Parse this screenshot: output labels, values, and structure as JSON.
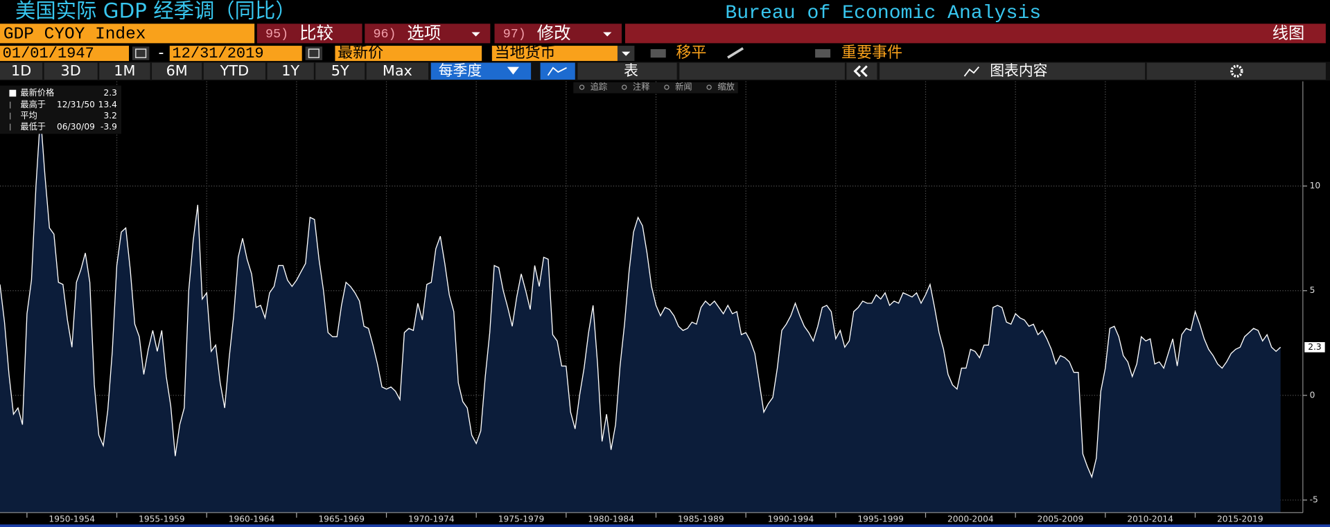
{
  "header": {
    "title": "美国实际 GDP 经季调（同比）",
    "source": "Bureau of Economic Analysis"
  },
  "command_bar": {
    "ticker": "GDP CYOY Index",
    "actions": [
      {
        "key": "95)",
        "label": "比较"
      },
      {
        "key": "96)",
        "label": "选项"
      },
      {
        "key": "97)",
        "label": "修改"
      }
    ],
    "view": "线图"
  },
  "settings_bar": {
    "start_date": "01/01/1947",
    "separator": "-",
    "end_date": "12/31/2019",
    "price_field": "最新价",
    "currency": "当地货币",
    "smoothing": "移平",
    "events": "重要事件"
  },
  "range_bar": {
    "ranges": [
      "1D",
      "3D",
      "1M",
      "6M",
      "YTD",
      "1Y",
      "5Y",
      "Max"
    ],
    "frequency": "每季度",
    "table": "表",
    "chart_contents": "图表内容"
  },
  "chart_tools": [
    "追踪",
    "注释",
    "新闻",
    "缩放"
  ],
  "chart_data": {
    "type": "area",
    "stats": {
      "high_label": "最高于",
      "high_date": "12/31/50",
      "high": 13.4,
      "mean_label": "平均",
      "mean": 3.2,
      "low_label": "最低于",
      "low_date": "06/30/09",
      "low": -3.9
    },
    "x": [
      1948.5,
      1948.75,
      1949,
      1949.25,
      1949.5,
      1949.75,
      1950,
      1950.25,
      1950.5,
      1950.75,
      1951,
      1951.25,
      1951.5,
      1951.75,
      1952,
      1952.25,
      1952.5,
      1952.75,
      1953,
      1953.25,
      1953.5,
      1953.75,
      1954,
      1954.25,
      1954.5,
      1954.75,
      1955,
      1955.25,
      1955.5,
      1955.75,
      1956,
      1956.25,
      1956.5,
      1956.75,
      1957,
      1957.25,
      1957.5,
      1957.75,
      1958,
      1958.25,
      1958.5,
      1958.75,
      1959,
      1959.25,
      1959.5,
      1959.75,
      1960,
      1960.25,
      1960.5,
      1960.75,
      1961,
      1961.25,
      1961.5,
      1961.75,
      1962,
      1962.25,
      1962.5,
      1962.75,
      1963,
      1963.25,
      1963.5,
      1963.75,
      1964,
      1964.25,
      1964.5,
      1964.75,
      1965,
      1965.25,
      1965.5,
      1965.75,
      1966,
      1966.25,
      1966.5,
      1966.75,
      1967,
      1967.25,
      1967.5,
      1967.75,
      1968,
      1968.25,
      1968.5,
      1968.75,
      1969,
      1969.25,
      1969.5,
      1969.75,
      1970,
      1970.25,
      1970.5,
      1970.75,
      1971,
      1971.25,
      1971.5,
      1971.75,
      1972,
      1972.25,
      1972.5,
      1972.75,
      1973,
      1973.25,
      1973.5,
      1973.75,
      1974,
      1974.25,
      1974.5,
      1974.75,
      1975,
      1975.25,
      1975.5,
      1975.75,
      1976,
      1976.25,
      1976.5,
      1976.75,
      1977,
      1977.25,
      1977.5,
      1977.75,
      1978,
      1978.25,
      1978.5,
      1978.75,
      1979,
      1979.25,
      1979.5,
      1979.75,
      1980,
      1980.25,
      1980.5,
      1980.75,
      1981,
      1981.25,
      1981.5,
      1981.75,
      1982,
      1982.25,
      1982.5,
      1982.75,
      1983,
      1983.25,
      1983.5,
      1983.75,
      1984,
      1984.25,
      1984.5,
      1984.75,
      1985,
      1985.25,
      1985.5,
      1985.75,
      1986,
      1986.25,
      1986.5,
      1986.75,
      1987,
      1987.25,
      1987.5,
      1987.75,
      1988,
      1988.25,
      1988.5,
      1988.75,
      1989,
      1989.25,
      1989.5,
      1989.75,
      1990,
      1990.25,
      1990.5,
      1990.75,
      1991,
      1991.25,
      1991.5,
      1991.75,
      1992,
      1992.25,
      1992.5,
      1992.75,
      1993,
      1993.25,
      1993.5,
      1993.75,
      1994,
      1994.25,
      1994.5,
      1994.75,
      1995,
      1995.25,
      1995.5,
      1995.75,
      1996,
      1996.25,
      1996.5,
      1996.75,
      1997,
      1997.25,
      1997.5,
      1997.75,
      1998,
      1998.25,
      1998.5,
      1998.75,
      1999,
      1999.25,
      1999.5,
      1999.75,
      2000,
      2000.25,
      2000.5,
      2000.75,
      2001,
      2001.25,
      2001.5,
      2001.75,
      2002,
      2002.25,
      2002.5,
      2002.75,
      2003,
      2003.25,
      2003.5,
      2003.75,
      2004,
      2004.25,
      2004.5,
      2004.75,
      2005,
      2005.25,
      2005.5,
      2005.75,
      2006,
      2006.25,
      2006.5,
      2006.75,
      2007,
      2007.25,
      2007.5,
      2007.75,
      2008,
      2008.25,
      2008.5,
      2008.75,
      2009,
      2009.25,
      2009.5,
      2009.75,
      2010,
      2010.25,
      2010.5,
      2010.75,
      2011,
      2011.25,
      2011.5,
      2011.75,
      2012,
      2012.25,
      2012.5,
      2012.75,
      2013,
      2013.25,
      2013.5,
      2013.75,
      2014,
      2014.25,
      2014.5,
      2014.75,
      2015,
      2015.25,
      2015.5,
      2015.75,
      2016,
      2016.25,
      2016.5,
      2016.75,
      2017,
      2017.25,
      2017.5,
      2017.75,
      2018,
      2018.25,
      2018.5,
      2018.75,
      2019,
      2019.25,
      2019.5,
      2019.75
    ],
    "series": [
      {
        "name": "最新价格",
        "color": "#ffffff",
        "fill": "#0c1d3a",
        "values": [
          5.3,
          3.5,
          1.0,
          -0.9,
          -0.6,
          -1.4,
          3.9,
          5.5,
          10.0,
          13.4,
          10.5,
          8.0,
          7.7,
          5.4,
          5.3,
          3.6,
          2.3,
          5.4,
          6.0,
          6.8,
          5.4,
          0.5,
          -1.9,
          -2.4,
          -0.7,
          2.1,
          6.2,
          7.8,
          8.0,
          6.0,
          3.4,
          2.8,
          1.0,
          2.2,
          3.1,
          2.1,
          3.1,
          0.9,
          -0.5,
          -2.9,
          -1.4,
          -0.6,
          5.0,
          7.4,
          9.1,
          4.6,
          4.9,
          2.1,
          2.4,
          0.6,
          -0.6,
          1.8,
          3.8,
          6.6,
          7.5,
          6.5,
          5.8,
          4.2,
          4.3,
          3.7,
          4.9,
          5.2,
          6.2,
          6.2,
          5.5,
          5.2,
          5.5,
          5.9,
          6.3,
          8.5,
          8.4,
          6.5,
          5.0,
          3.0,
          2.8,
          2.8,
          4.3,
          5.4,
          5.2,
          4.9,
          4.5,
          3.3,
          3.2,
          2.4,
          1.5,
          0.4,
          0.3,
          0.4,
          0.2,
          -0.2,
          3.0,
          3.2,
          3.1,
          4.4,
          3.6,
          5.3,
          5.4,
          7.0,
          7.6,
          6.3,
          4.8,
          4.0,
          0.6,
          -0.3,
          -0.6,
          -1.9,
          -2.3,
          -1.7,
          0.9,
          3.0,
          6.2,
          6.1,
          5.0,
          4.2,
          3.3,
          4.7,
          5.8,
          5.0,
          4.1,
          6.2,
          5.2,
          6.6,
          6.5,
          2.9,
          2.6,
          1.4,
          1.4,
          -0.8,
          -1.6,
          0.0,
          1.3,
          3.0,
          4.3,
          1.5,
          -2.2,
          -0.9,
          -2.6,
          -1.4,
          1.4,
          3.4,
          5.9,
          7.8,
          8.5,
          8.1,
          6.8,
          5.2,
          4.3,
          3.8,
          4.2,
          4.1,
          3.8,
          3.3,
          3.1,
          3.2,
          3.5,
          3.4,
          4.2,
          4.5,
          4.3,
          4.5,
          4.2,
          3.9,
          4.3,
          3.9,
          4.0,
          2.9,
          3.0,
          2.6,
          2.0,
          0.6,
          -0.8,
          -0.4,
          -0.1,
          1.3,
          3.1,
          3.4,
          3.8,
          4.4,
          3.8,
          3.3,
          3.0,
          2.6,
          3.3,
          4.2,
          4.3,
          4.0,
          2.7,
          3.1,
          2.3,
          2.6,
          4.0,
          4.2,
          4.5,
          4.4,
          4.4,
          4.8,
          4.6,
          4.9,
          4.3,
          4.5,
          4.4,
          4.9,
          4.8,
          4.7,
          4.9,
          4.4,
          4.8,
          5.3,
          4.2,
          3.0,
          2.2,
          1.0,
          0.5,
          0.3,
          1.3,
          1.3,
          2.2,
          2.1,
          1.8,
          2.4,
          2.4,
          4.2,
          4.3,
          4.2,
          3.5,
          3.4,
          3.9,
          3.7,
          3.6,
          3.3,
          3.4,
          2.9,
          3.1,
          2.7,
          2.2,
          1.5,
          1.9,
          1.8,
          1.6,
          1.1,
          1.1,
          -2.8,
          -3.4,
          -3.9,
          -3.0,
          0.2,
          1.3,
          3.2,
          3.3,
          2.8,
          1.9,
          1.6,
          0.9,
          1.5,
          2.8,
          2.6,
          2.7,
          1.5,
          1.6,
          1.3,
          2.0,
          2.7,
          1.4,
          2.9,
          3.2,
          3.1,
          4.0,
          3.4,
          2.7,
          2.2,
          1.9,
          1.5,
          1.3,
          1.6,
          2.0,
          2.2,
          2.3,
          2.8,
          3.0,
          3.2,
          3.1,
          2.6,
          2.9,
          2.3,
          2.1,
          2.3
        ]
      }
    ],
    "xlim": [
      1948.5,
      2020.0
    ],
    "xticks": [
      {
        "value": 1950,
        "label": "1950-1954"
      },
      {
        "value": 1955,
        "label": "1955-1959"
      },
      {
        "value": 1960,
        "label": "1960-1964"
      },
      {
        "value": 1965,
        "label": "1965-1969"
      },
      {
        "value": 1970,
        "label": "1970-1974"
      },
      {
        "value": 1975,
        "label": "1975-1979"
      },
      {
        "value": 1980,
        "label": "1980-1984"
      },
      {
        "value": 1985,
        "label": "1985-1989"
      },
      {
        "value": 1990,
        "label": "1990-1994"
      },
      {
        "value": 1995,
        "label": "1995-1999"
      },
      {
        "value": 2000,
        "label": "2000-2004"
      },
      {
        "value": 2005,
        "label": "2005-2009"
      },
      {
        "value": 2010,
        "label": "2010-2014"
      },
      {
        "value": 2015,
        "label": "2015-2019"
      }
    ],
    "ylim": [
      -5.6,
      15
    ],
    "yticks": [
      -5,
      0,
      5,
      10
    ],
    "grid": true
  }
}
